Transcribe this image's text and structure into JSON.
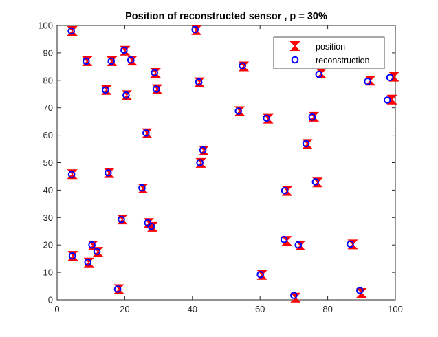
{
  "chart_data": {
    "type": "scatter",
    "title": "Position of reconstructed sensor , p = 30%",
    "xlabel": "",
    "ylabel": "",
    "xlim": [
      0,
      100
    ],
    "ylim": [
      0,
      100
    ],
    "xticks": [
      0,
      20,
      40,
      60,
      80,
      100
    ],
    "yticks": [
      0,
      10,
      20,
      30,
      40,
      50,
      60,
      70,
      80,
      90,
      100
    ],
    "grid": false,
    "legend_position": "top-right",
    "series": [
      {
        "name": "position",
        "marker": "bowtie",
        "color": "#ff0000",
        "points": [
          [
            4.5,
            98
          ],
          [
            8.9,
            87
          ],
          [
            16.2,
            87
          ],
          [
            20.1,
            90.8
          ],
          [
            22.2,
            87.2
          ],
          [
            14.6,
            76.5
          ],
          [
            20.6,
            74.6
          ],
          [
            29.1,
            82.7
          ],
          [
            29.6,
            76.8
          ],
          [
            26.6,
            60.7
          ],
          [
            41.2,
            98.3
          ],
          [
            42.1,
            79.3
          ],
          [
            55.2,
            85.1
          ],
          [
            78.1,
            82.5
          ],
          [
            92.6,
            79.9
          ],
          [
            99.6,
            81.3
          ],
          [
            99,
            73
          ],
          [
            54,
            68.8
          ],
          [
            62.4,
            66
          ],
          [
            75.9,
            66.7
          ],
          [
            74,
            56.8
          ],
          [
            43.4,
            54.4
          ],
          [
            42.5,
            49.9
          ],
          [
            4.5,
            45.8
          ],
          [
            15.4,
            46.2
          ],
          [
            25.4,
            40.6
          ],
          [
            68,
            39.7
          ],
          [
            77,
            42.8
          ],
          [
            19.3,
            29.3
          ],
          [
            27.1,
            28
          ],
          [
            28.2,
            26.6
          ],
          [
            10.6,
            19.8
          ],
          [
            12.1,
            17.5
          ],
          [
            4.7,
            16
          ],
          [
            9.4,
            13.6
          ],
          [
            67.9,
            21.5
          ],
          [
            71.9,
            19.8
          ],
          [
            87.4,
            20.2
          ],
          [
            18.3,
            3.9
          ],
          [
            60.6,
            9.1
          ],
          [
            70.5,
            0.8
          ],
          [
            90,
            2.5
          ]
        ]
      },
      {
        "name": "reconstruction",
        "marker": "circle",
        "color": "#0000ff",
        "points": [
          [
            4.2,
            98
          ],
          [
            8.6,
            87
          ],
          [
            16,
            87
          ],
          [
            19.8,
            91
          ],
          [
            21.8,
            87.4
          ],
          [
            14.3,
            76.5
          ],
          [
            20.4,
            74.6
          ],
          [
            28.8,
            82.8
          ],
          [
            29.3,
            76.8
          ],
          [
            26.3,
            60.8
          ],
          [
            40.8,
            98.5
          ],
          [
            41.9,
            79.4
          ],
          [
            54.8,
            85.3
          ],
          [
            77.4,
            82.2
          ],
          [
            91.8,
            79.6
          ],
          [
            98.4,
            81
          ],
          [
            97.6,
            72.8
          ],
          [
            53.6,
            68.8
          ],
          [
            61.9,
            66.2
          ],
          [
            75.4,
            66.6
          ],
          [
            73.6,
            56.9
          ],
          [
            43.1,
            54.6
          ],
          [
            42.2,
            50
          ],
          [
            4.3,
            45.7
          ],
          [
            15.1,
            46.3
          ],
          [
            25.1,
            40.8
          ],
          [
            67.3,
            39.8
          ],
          [
            76.4,
            43
          ],
          [
            19,
            29.3
          ],
          [
            26.8,
            28.1
          ],
          [
            27.8,
            26.8
          ],
          [
            10.3,
            20
          ],
          [
            11.8,
            17.6
          ],
          [
            4.5,
            16
          ],
          [
            9.1,
            13.7
          ],
          [
            67.1,
            22
          ],
          [
            71.3,
            20
          ],
          [
            86.7,
            20.3
          ],
          [
            17.9,
            3.9
          ],
          [
            60.1,
            9.2
          ],
          [
            70,
            1.6
          ],
          [
            89.5,
            3.4
          ]
        ]
      }
    ]
  }
}
